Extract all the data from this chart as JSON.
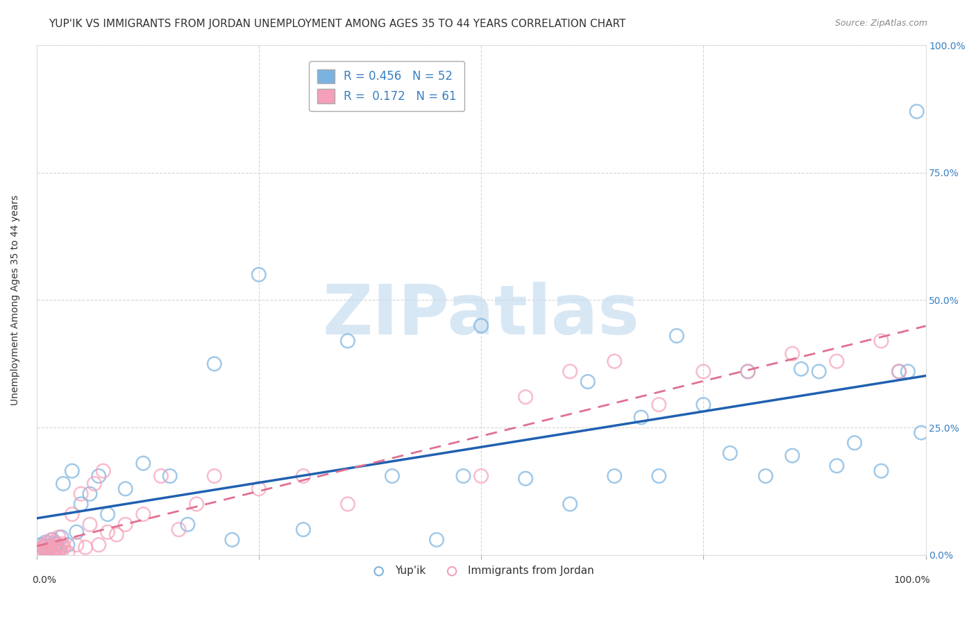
{
  "title": "YUP'IK VS IMMIGRANTS FROM JORDAN UNEMPLOYMENT AMONG AGES 35 TO 44 YEARS CORRELATION CHART",
  "source": "Source: ZipAtlas.com",
  "ylabel": "Unemployment Among Ages 35 to 44 years",
  "xlim": [
    0.0,
    1.0
  ],
  "ylim": [
    0.0,
    1.0
  ],
  "yticks": [
    0.0,
    0.25,
    0.5,
    0.75,
    1.0
  ],
  "yticklabels": [
    "0.0%",
    "25.0%",
    "50.0%",
    "75.0%",
    "100.0%"
  ],
  "xticklabels_bottom": [
    "0.0%",
    "",
    "",
    "",
    "100.0%"
  ],
  "series1_name": "Yup'ik",
  "series1_color": "#7ab3e0",
  "series1_edge": "#5590c8",
  "series1_R": 0.456,
  "series1_N": 52,
  "series2_name": "Immigrants from Jordan",
  "series2_color": "#f5a0b8",
  "series2_edge": "#e07090",
  "series2_R": 0.172,
  "series2_N": 61,
  "trend1_color": "#2060b0",
  "trend2_color": "#e07090",
  "background_color": "#ffffff",
  "grid_color": "#cccccc",
  "title_fontsize": 11,
  "axis_fontsize": 10,
  "tick_fontsize": 10,
  "legend1_label": "R = 0.456   N = 52",
  "legend2_label": "R =  0.172   N = 61",
  "legend_text_color": "#3a7fc1",
  "ytick_color": "#3a7fc1",
  "watermark_text": "ZIPatlas",
  "watermark_color": "#c8ddf0",
  "series1_x": [
    0.005,
    0.008,
    0.01,
    0.012,
    0.015,
    0.018,
    0.02,
    0.022,
    0.025,
    0.028,
    0.03,
    0.035,
    0.04,
    0.045,
    0.05,
    0.06,
    0.07,
    0.08,
    0.1,
    0.12,
    0.15,
    0.17,
    0.2,
    0.22,
    0.25,
    0.3,
    0.35,
    0.4,
    0.45,
    0.48,
    0.5,
    0.55,
    0.6,
    0.62,
    0.65,
    0.68,
    0.7,
    0.72,
    0.75,
    0.78,
    0.8,
    0.82,
    0.85,
    0.86,
    0.88,
    0.9,
    0.92,
    0.95,
    0.97,
    0.98,
    0.99,
    0.995
  ],
  "series1_y": [
    0.02,
    0.015,
    0.025,
    0.01,
    0.018,
    0.03,
    0.012,
    0.022,
    0.008,
    0.035,
    0.14,
    0.02,
    0.165,
    0.045,
    0.1,
    0.12,
    0.155,
    0.08,
    0.13,
    0.18,
    0.155,
    0.06,
    0.375,
    0.03,
    0.55,
    0.05,
    0.42,
    0.155,
    0.03,
    0.155,
    0.45,
    0.15,
    0.1,
    0.34,
    0.155,
    0.27,
    0.155,
    0.43,
    0.295,
    0.2,
    0.36,
    0.155,
    0.195,
    0.365,
    0.36,
    0.175,
    0.22,
    0.165,
    0.36,
    0.36,
    0.87,
    0.24
  ],
  "series2_x": [
    0.001,
    0.002,
    0.003,
    0.004,
    0.005,
    0.006,
    0.007,
    0.008,
    0.009,
    0.01,
    0.011,
    0.012,
    0.013,
    0.014,
    0.015,
    0.016,
    0.017,
    0.018,
    0.019,
    0.02,
    0.021,
    0.022,
    0.023,
    0.024,
    0.025,
    0.026,
    0.027,
    0.028,
    0.029,
    0.03,
    0.035,
    0.04,
    0.045,
    0.05,
    0.055,
    0.06,
    0.065,
    0.07,
    0.075,
    0.08,
    0.09,
    0.1,
    0.12,
    0.14,
    0.16,
    0.18,
    0.2,
    0.25,
    0.3,
    0.35,
    0.5,
    0.55,
    0.6,
    0.65,
    0.7,
    0.75,
    0.8,
    0.85,
    0.9,
    0.95,
    0.97
  ],
  "series2_y": [
    0.005,
    0.008,
    0.01,
    0.004,
    0.012,
    0.006,
    0.015,
    0.003,
    0.018,
    0.007,
    0.02,
    0.005,
    0.025,
    0.01,
    0.015,
    0.008,
    0.03,
    0.012,
    0.005,
    0.025,
    0.015,
    0.01,
    0.02,
    0.008,
    0.035,
    0.012,
    0.018,
    0.006,
    0.022,
    0.015,
    0.005,
    0.08,
    0.02,
    0.12,
    0.015,
    0.06,
    0.14,
    0.02,
    0.165,
    0.045,
    0.04,
    0.06,
    0.08,
    0.155,
    0.05,
    0.1,
    0.155,
    0.13,
    0.155,
    0.1,
    0.155,
    0.31,
    0.36,
    0.38,
    0.295,
    0.36,
    0.36,
    0.395,
    0.38,
    0.42,
    0.36
  ]
}
